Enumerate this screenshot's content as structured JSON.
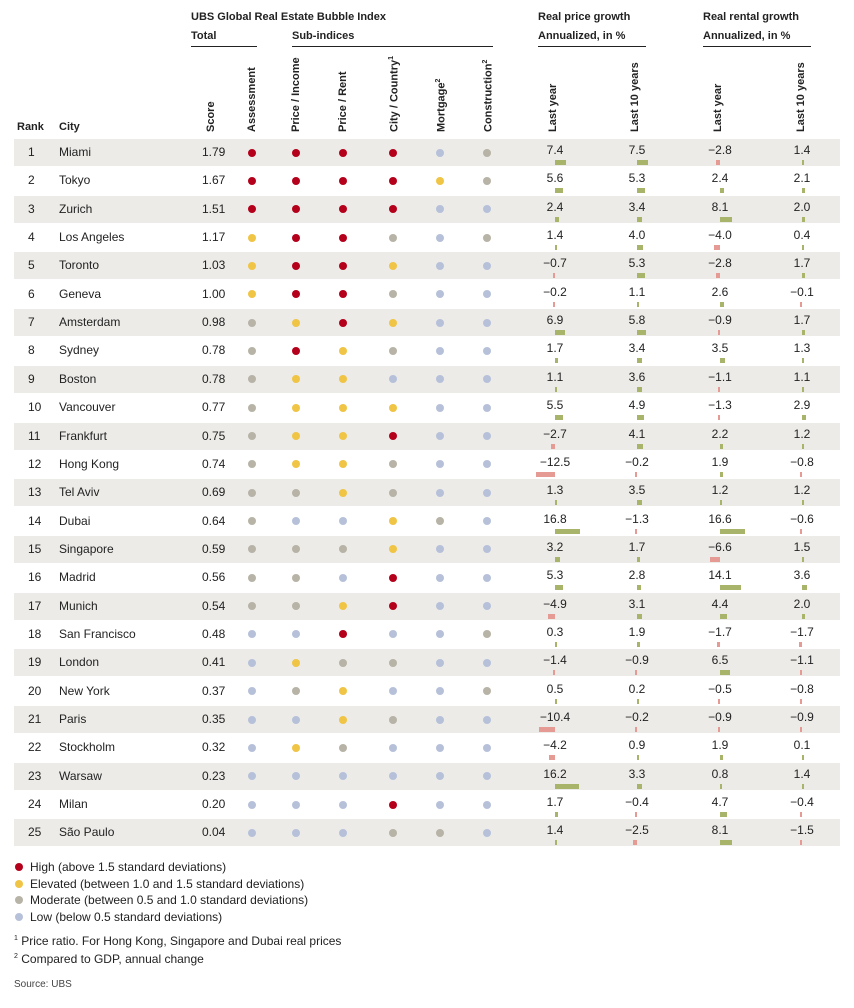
{
  "header": {
    "index_title": "UBS Global Real Estate Bubble Index",
    "total_label": "Total",
    "subindices_label": "Sub-indices",
    "price_growth_title": "Real price growth",
    "price_growth_sub": "Annualized, in %",
    "rental_growth_title": "Real rental growth",
    "rental_growth_sub": "Annualized, in %",
    "rank_label": "Rank",
    "city_label": "City",
    "score_label": "Score",
    "assessment_label": "Assessment",
    "price_income_label": "Price / Income",
    "price_rent_label": "Price / Rent",
    "city_country_label": "City / Country",
    "city_country_sup": "1",
    "mortgage_label": "Mortgage",
    "mortgage_sup": "2",
    "construction_label": "Construction",
    "construction_sup": "2",
    "last_year_label": "Last year",
    "last_10_label": "Last 10 years"
  },
  "colors": {
    "high": "#b5001c",
    "elevated": "#f0c445",
    "moderate": "#b7b3a6",
    "low": "#b6c1d9",
    "bar_positive": "#a9b46b",
    "bar_negative": "#e59a94",
    "row_shade": "#ecebe8"
  },
  "chart_data": {
    "type": "table",
    "title": "UBS Global Real Estate Bubble Index",
    "columns": [
      "Rank",
      "City",
      "Score",
      "Assessment",
      "Price / Income",
      "Price / Rent",
      "City / Country",
      "Mortgage",
      "Construction",
      "Real price growth last year",
      "Real price growth last 10 years",
      "Real rental growth last year",
      "Real rental growth last 10 years"
    ],
    "rows": [
      {
        "rank": "1",
        "city": "Miami",
        "score": "1.79",
        "levels": [
          "H",
          "H",
          "H",
          "H",
          "L",
          "M"
        ],
        "price_ly": "7.4",
        "price_10y": "7.5",
        "rent_ly": "−2.8",
        "rent_10y": "1.4"
      },
      {
        "rank": "2",
        "city": "Tokyo",
        "score": "1.67",
        "levels": [
          "H",
          "H",
          "H",
          "H",
          "E",
          "M"
        ],
        "price_ly": "5.6",
        "price_10y": "5.3",
        "rent_ly": "2.4",
        "rent_10y": "2.1"
      },
      {
        "rank": "3",
        "city": "Zurich",
        "score": "1.51",
        "levels": [
          "H",
          "H",
          "H",
          "H",
          "L",
          "L"
        ],
        "price_ly": "2.4",
        "price_10y": "3.4",
        "rent_ly": "8.1",
        "rent_10y": "2.0"
      },
      {
        "rank": "4",
        "city": "Los Angeles",
        "score": "1.17",
        "levels": [
          "E",
          "H",
          "H",
          "M",
          "L",
          "M"
        ],
        "price_ly": "1.4",
        "price_10y": "4.0",
        "rent_ly": "−4.0",
        "rent_10y": "0.4"
      },
      {
        "rank": "5",
        "city": "Toronto",
        "score": "1.03",
        "levels": [
          "E",
          "H",
          "H",
          "E",
          "L",
          "L"
        ],
        "price_ly": "−0.7",
        "price_10y": "5.3",
        "rent_ly": "−2.8",
        "rent_10y": "1.7"
      },
      {
        "rank": "6",
        "city": "Geneva",
        "score": "1.00",
        "levels": [
          "E",
          "H",
          "H",
          "M",
          "L",
          "L"
        ],
        "price_ly": "−0.2",
        "price_10y": "1.1",
        "rent_ly": "2.6",
        "rent_10y": "−0.1"
      },
      {
        "rank": "7",
        "city": "Amsterdam",
        "score": "0.98",
        "levels": [
          "M",
          "E",
          "H",
          "E",
          "L",
          "L"
        ],
        "price_ly": "6.9",
        "price_10y": "5.8",
        "rent_ly": "−0.9",
        "rent_10y": "1.7"
      },
      {
        "rank": "8",
        "city": "Sydney",
        "score": "0.78",
        "levels": [
          "M",
          "H",
          "E",
          "M",
          "L",
          "L"
        ],
        "price_ly": "1.7",
        "price_10y": "3.4",
        "rent_ly": "3.5",
        "rent_10y": "1.3"
      },
      {
        "rank": "9",
        "city": "Boston",
        "score": "0.78",
        "levels": [
          "M",
          "E",
          "E",
          "L",
          "L",
          "L"
        ],
        "price_ly": "1.1",
        "price_10y": "3.6",
        "rent_ly": "−1.1",
        "rent_10y": "1.1"
      },
      {
        "rank": "10",
        "city": "Vancouver",
        "score": "0.77",
        "levels": [
          "M",
          "E",
          "E",
          "E",
          "L",
          "L"
        ],
        "price_ly": "5.5",
        "price_10y": "4.9",
        "rent_ly": "−1.3",
        "rent_10y": "2.9"
      },
      {
        "rank": "11",
        "city": "Frankfurt",
        "score": "0.75",
        "levels": [
          "M",
          "E",
          "E",
          "H",
          "L",
          "L"
        ],
        "price_ly": "−2.7",
        "price_10y": "4.1",
        "rent_ly": "2.2",
        "rent_10y": "1.2"
      },
      {
        "rank": "12",
        "city": "Hong Kong",
        "score": "0.74",
        "levels": [
          "M",
          "E",
          "E",
          "M",
          "L",
          "L"
        ],
        "price_ly": "−12.5",
        "price_10y": "−0.2",
        "rent_ly": "1.9",
        "rent_10y": "−0.8"
      },
      {
        "rank": "13",
        "city": "Tel Aviv",
        "score": "0.69",
        "levels": [
          "M",
          "M",
          "E",
          "M",
          "L",
          "L"
        ],
        "price_ly": "1.3",
        "price_10y": "3.5",
        "rent_ly": "1.2",
        "rent_10y": "1.2"
      },
      {
        "rank": "14",
        "city": "Dubai",
        "score": "0.64",
        "levels": [
          "M",
          "L",
          "L",
          "E",
          "M",
          "L"
        ],
        "price_ly": "16.8",
        "price_10y": "−1.3",
        "rent_ly": "16.6",
        "rent_10y": "−0.6"
      },
      {
        "rank": "15",
        "city": "Singapore",
        "score": "0.59",
        "levels": [
          "M",
          "M",
          "M",
          "E",
          "L",
          "L"
        ],
        "price_ly": "3.2",
        "price_10y": "1.7",
        "rent_ly": "−6.6",
        "rent_10y": "1.5"
      },
      {
        "rank": "16",
        "city": "Madrid",
        "score": "0.56",
        "levels": [
          "M",
          "M",
          "L",
          "H",
          "L",
          "L"
        ],
        "price_ly": "5.3",
        "price_10y": "2.8",
        "rent_ly": "14.1",
        "rent_10y": "3.6"
      },
      {
        "rank": "17",
        "city": "Munich",
        "score": "0.54",
        "levels": [
          "M",
          "M",
          "E",
          "H",
          "L",
          "L"
        ],
        "price_ly": "−4.9",
        "price_10y": "3.1",
        "rent_ly": "4.4",
        "rent_10y": "2.0"
      },
      {
        "rank": "18",
        "city": "San Francisco",
        "score": "0.48",
        "levels": [
          "L",
          "L",
          "H",
          "L",
          "L",
          "M"
        ],
        "price_ly": "0.3",
        "price_10y": "1.9",
        "rent_ly": "−1.7",
        "rent_10y": "−1.7"
      },
      {
        "rank": "19",
        "city": "London",
        "score": "0.41",
        "levels": [
          "L",
          "E",
          "M",
          "M",
          "L",
          "L"
        ],
        "price_ly": "−1.4",
        "price_10y": "−0.9",
        "rent_ly": "6.5",
        "rent_10y": "−1.1"
      },
      {
        "rank": "20",
        "city": "New York",
        "score": "0.37",
        "levels": [
          "L",
          "M",
          "E",
          "L",
          "L",
          "M"
        ],
        "price_ly": "0.5",
        "price_10y": "0.2",
        "rent_ly": "−0.5",
        "rent_10y": "−0.8"
      },
      {
        "rank": "21",
        "city": "Paris",
        "score": "0.35",
        "levels": [
          "L",
          "L",
          "E",
          "M",
          "L",
          "L"
        ],
        "price_ly": "−10.4",
        "price_10y": "−0.2",
        "rent_ly": "−0.9",
        "rent_10y": "−0.9"
      },
      {
        "rank": "22",
        "city": "Stockholm",
        "score": "0.32",
        "levels": [
          "L",
          "E",
          "M",
          "L",
          "L",
          "L"
        ],
        "price_ly": "−4.2",
        "price_10y": "0.9",
        "rent_ly": "1.9",
        "rent_10y": "0.1"
      },
      {
        "rank": "23",
        "city": "Warsaw",
        "score": "0.23",
        "levels": [
          "L",
          "L",
          "L",
          "L",
          "L",
          "L"
        ],
        "price_ly": "16.2",
        "price_10y": "3.3",
        "rent_ly": "0.8",
        "rent_10y": "1.4"
      },
      {
        "rank": "24",
        "city": "Milan",
        "score": "0.20",
        "levels": [
          "L",
          "L",
          "L",
          "H",
          "L",
          "L"
        ],
        "price_ly": "1.7",
        "price_10y": "−0.4",
        "rent_ly": "4.7",
        "rent_10y": "−0.4"
      },
      {
        "rank": "25",
        "city": "São Paulo",
        "score": "0.04",
        "levels": [
          "L",
          "L",
          "L",
          "M",
          "M",
          "L"
        ],
        "price_ly": "1.4",
        "price_10y": "−2.5",
        "rent_ly": "8.1",
        "rent_10y": "−1.5"
      }
    ]
  },
  "legend": [
    {
      "level": "H",
      "text": "High (above 1.5 standard deviations)"
    },
    {
      "level": "E",
      "text": "Elevated (between 1.0 and 1.5 standard deviations)"
    },
    {
      "level": "M",
      "text": "Moderate (between 0.5 and 1.0 standard deviations)"
    },
    {
      "level": "L",
      "text": "Low (below 0.5 standard deviations)"
    }
  ],
  "footnotes": {
    "fn1_mark": "1",
    "fn1_text": "Price ratio. For Hong Kong, Singapore and Dubai real prices",
    "fn2_mark": "2",
    "fn2_text": "Compared to GDP, annual change",
    "source": "Source: UBS"
  }
}
